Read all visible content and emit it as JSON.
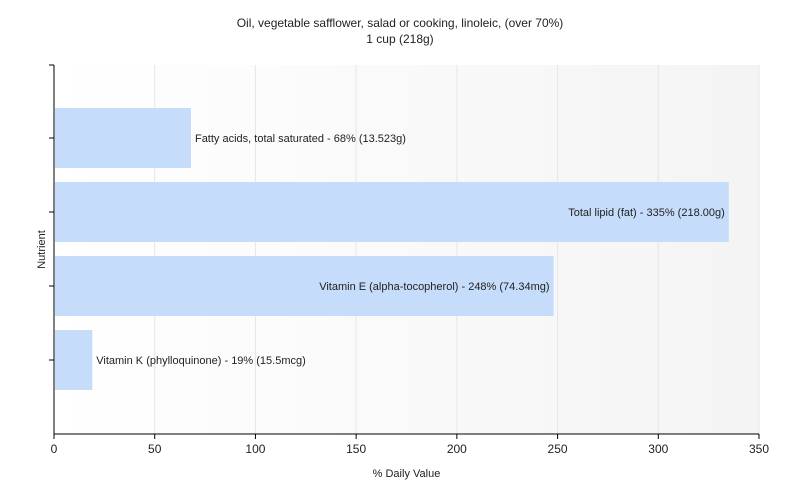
{
  "chart_data": {
    "type": "bar",
    "orientation": "horizontal",
    "title": "Oil, vegetable safflower, salad or cooking, linoleic, (over 70%)",
    "subtitle": "1 cup (218g)",
    "xlabel": "% Daily Value",
    "ylabel": "Nutrient",
    "xlim": [
      0,
      350
    ],
    "xticks": [
      "0",
      "50",
      "100",
      "150",
      "200",
      "250",
      "300",
      "350"
    ],
    "grid": "vertical",
    "categories": [
      "Fatty acids, total saturated",
      "Total lipid (fat)",
      "Vitamin E (alpha-tocopherol)",
      "Vitamin K (phylloquinone)"
    ],
    "values": [
      68,
      335,
      248,
      19
    ],
    "bar_labels": [
      "Fatty acids, total saturated - 68% (13.523g)",
      "Total lipid (fat) - 335% (218.00g)",
      "Vitamin E (alpha-tocopherol) - 248% (74.34mg)",
      "Vitamin K (phylloquinone) - 19% (15.5mcg)"
    ],
    "colors": {
      "bar": "#c6dcfb",
      "grid": "#e6e6e6",
      "axis": "#000000",
      "plot_bg_end": "#f4f4f4"
    }
  }
}
